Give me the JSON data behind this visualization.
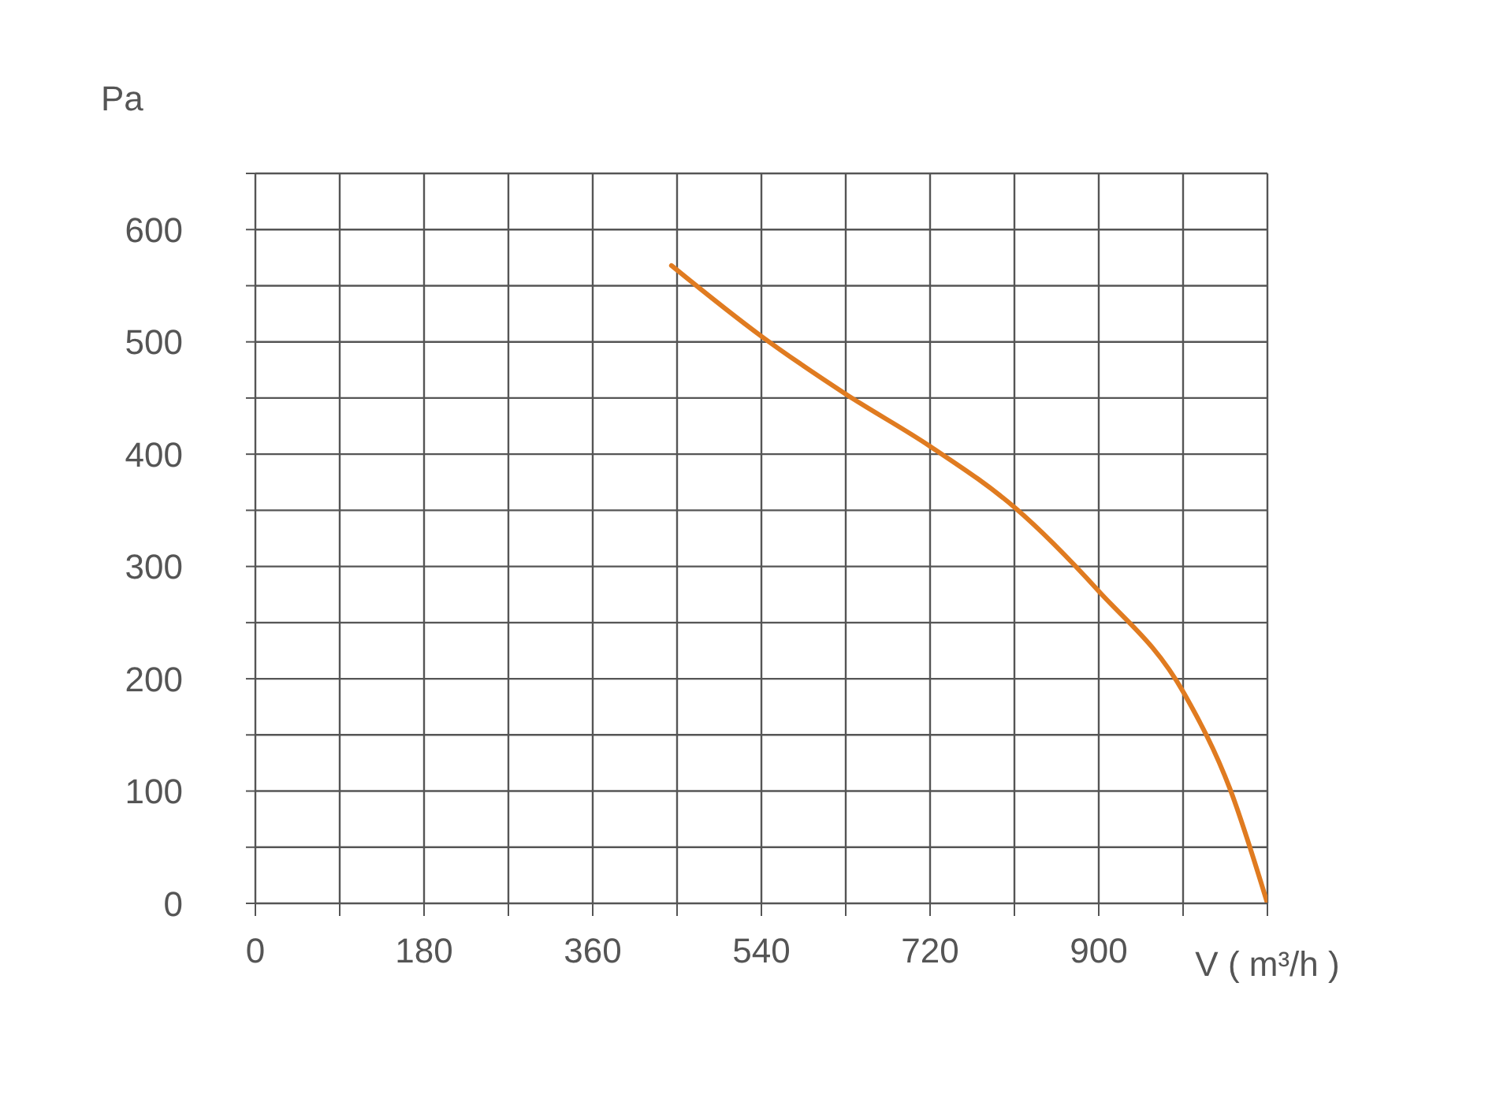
{
  "chart_data": {
    "type": "line",
    "xlabel": "V ( m³/h )",
    "ylabel": "Pa",
    "x": [
      444,
      540,
      631,
      720,
      811,
      900,
      991,
      1040,
      1080
    ],
    "series": [
      {
        "color": "#e07b20",
        "values": [
          568,
          505,
          453,
          407,
          352,
          278,
          187,
          102,
          0
        ]
      }
    ],
    "xlim": [
      0,
      1080
    ],
    "ylim": [
      0,
      650
    ],
    "xticks": [
      0,
      {
        "value": 90,
        "label": null
      },
      180,
      {
        "value": 270,
        "label": null
      },
      360,
      {
        "value": 450,
        "label": null
      },
      540,
      {
        "value": 630,
        "label": null
      },
      720,
      {
        "value": 810,
        "label": null
      },
      900,
      {
        "value": 990,
        "label": null
      },
      {
        "value": 1080,
        "label": null
      }
    ],
    "yticks": [
      0,
      {
        "value": 50,
        "label": null
      },
      100,
      {
        "value": 150,
        "label": null
      },
      200,
      {
        "value": 250,
        "label": null
      },
      300,
      {
        "value": 350,
        "label": null
      },
      400,
      {
        "value": 450,
        "label": null
      },
      500,
      {
        "value": 550,
        "label": null
      },
      600,
      {
        "value": 650,
        "label": null
      }
    ],
    "grid": true,
    "marker": "none",
    "line_style": "solid",
    "legend": false
  }
}
